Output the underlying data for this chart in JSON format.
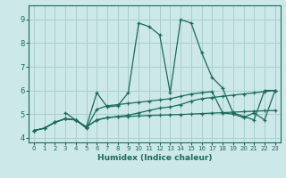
{
  "xlabel": "Humidex (Indice chaleur)",
  "bg_color": "#cce8e8",
  "grid_color": "#aacece",
  "line_color": "#1a6b5a",
  "xlim": [
    -0.5,
    23.5
  ],
  "ylim": [
    3.8,
    9.6
  ],
  "xticks": [
    0,
    1,
    2,
    3,
    4,
    5,
    6,
    7,
    8,
    9,
    10,
    11,
    12,
    13,
    14,
    15,
    16,
    17,
    18,
    19,
    20,
    21,
    22,
    23
  ],
  "yticks": [
    4,
    5,
    6,
    7,
    8,
    9
  ],
  "line1_x": [
    0,
    1,
    2,
    3,
    4,
    5,
    6,
    7,
    8,
    9,
    10,
    11,
    12,
    13,
    14,
    15,
    16,
    17,
    18,
    19,
    20,
    21,
    22,
    23
  ],
  "line1_y": [
    4.3,
    4.4,
    4.65,
    4.8,
    4.75,
    4.45,
    5.9,
    5.3,
    5.35,
    5.9,
    8.85,
    8.7,
    8.35,
    5.9,
    9.0,
    8.85,
    7.6,
    6.55,
    6.1,
    5.05,
    4.9,
    4.75,
    6.0,
    6.0
  ],
  "line2_x": [
    0,
    1,
    2,
    3,
    4,
    5,
    6,
    7,
    8,
    9,
    10,
    11,
    12,
    13,
    14,
    15,
    16,
    17,
    18,
    19,
    20,
    21,
    22,
    23
  ],
  "line2_y": [
    4.3,
    4.4,
    4.65,
    4.8,
    4.75,
    4.45,
    4.75,
    4.85,
    4.9,
    4.95,
    5.05,
    5.15,
    5.25,
    5.3,
    5.4,
    5.55,
    5.65,
    5.7,
    5.75,
    5.8,
    5.85,
    5.9,
    5.95,
    6.0
  ],
  "line3_x": [
    0,
    1,
    2,
    3,
    4,
    5,
    6,
    7,
    8,
    9,
    10,
    11,
    12,
    13,
    14,
    15,
    16,
    17,
    18,
    19,
    20,
    21,
    22,
    23
  ],
  "line3_y": [
    4.3,
    4.4,
    4.65,
    4.8,
    4.75,
    4.45,
    4.75,
    4.85,
    4.88,
    4.9,
    4.92,
    4.94,
    4.95,
    4.97,
    4.98,
    5.0,
    5.02,
    5.04,
    5.06,
    5.08,
    5.1,
    5.12,
    5.14,
    5.15
  ],
  "line4_x": [
    3,
    4,
    5,
    6,
    7,
    8,
    9,
    10,
    11,
    12,
    13,
    14,
    15,
    16,
    17,
    18,
    19,
    20,
    21,
    22,
    23
  ],
  "line4_y": [
    5.05,
    4.75,
    4.4,
    5.2,
    5.35,
    5.4,
    5.45,
    5.5,
    5.55,
    5.6,
    5.65,
    5.75,
    5.85,
    5.9,
    5.95,
    5.05,
    5.0,
    4.85,
    5.05,
    4.75,
    6.0
  ]
}
